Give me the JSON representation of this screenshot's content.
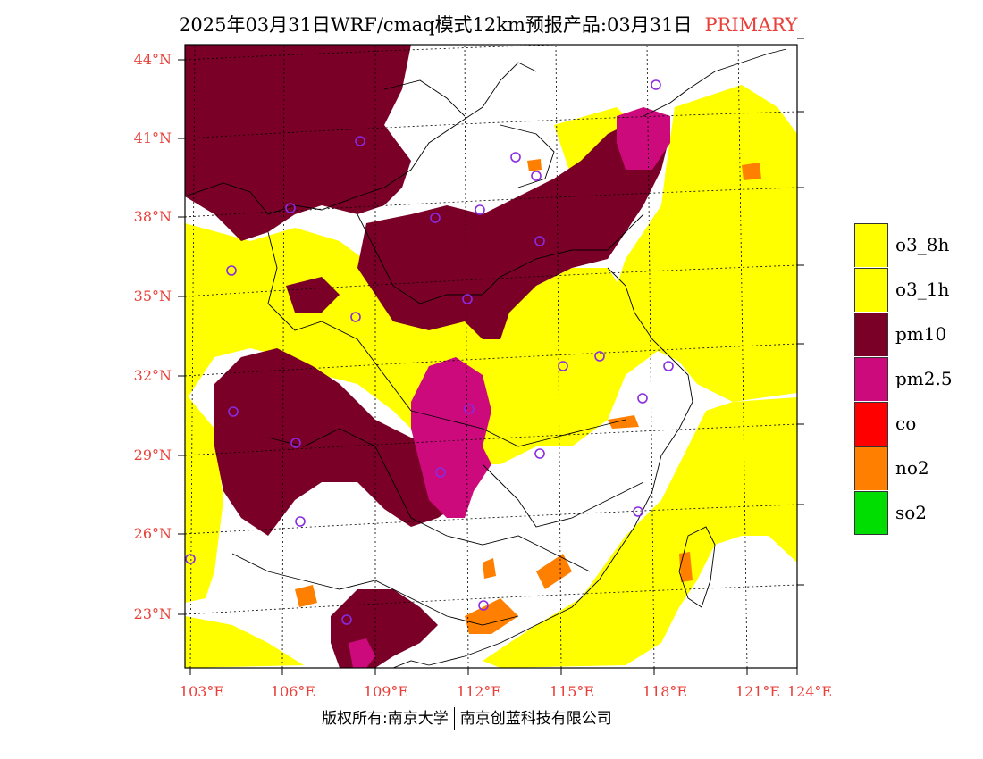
{
  "title": {
    "main": "2025年03月31日WRF/cmaq模式12km预报产品:03月31日",
    "product": "PRIMARY"
  },
  "map": {
    "lat_labels": [
      "44°N",
      "41°N",
      "38°N",
      "35°N",
      "32°N",
      "29°N",
      "26°N",
      "23°N"
    ],
    "lon_labels": [
      "103°E",
      "106°E",
      "109°E",
      "112°E",
      "115°E",
      "118°E",
      "121°E",
      "124°E"
    ],
    "colors": {
      "o3_8h": "#ffff00",
      "o3_1h": "#ffff00",
      "pm10": "#7a0028",
      "pm2_5": "#cc0a7c",
      "co": "#ff0000",
      "no2": "#ff8000",
      "so2": "#00dd00",
      "station": "#8a2be2"
    }
  },
  "legend": {
    "items": [
      {
        "label": "o3_8h",
        "color": "#ffff00"
      },
      {
        "label": "o3_1h",
        "color": "#ffff00"
      },
      {
        "label": "pm10",
        "color": "#7a0028"
      },
      {
        "label": "pm2.5",
        "color": "#cc0a7c"
      },
      {
        "label": "co",
        "color": "#ff0000"
      },
      {
        "label": "no2",
        "color": "#ff8000"
      },
      {
        "label": "so2",
        "color": "#00dd00"
      }
    ]
  },
  "footer": {
    "copyright_left": "版权所有:南京大学",
    "copyright_right": "南京创蓝科技有限公司"
  }
}
